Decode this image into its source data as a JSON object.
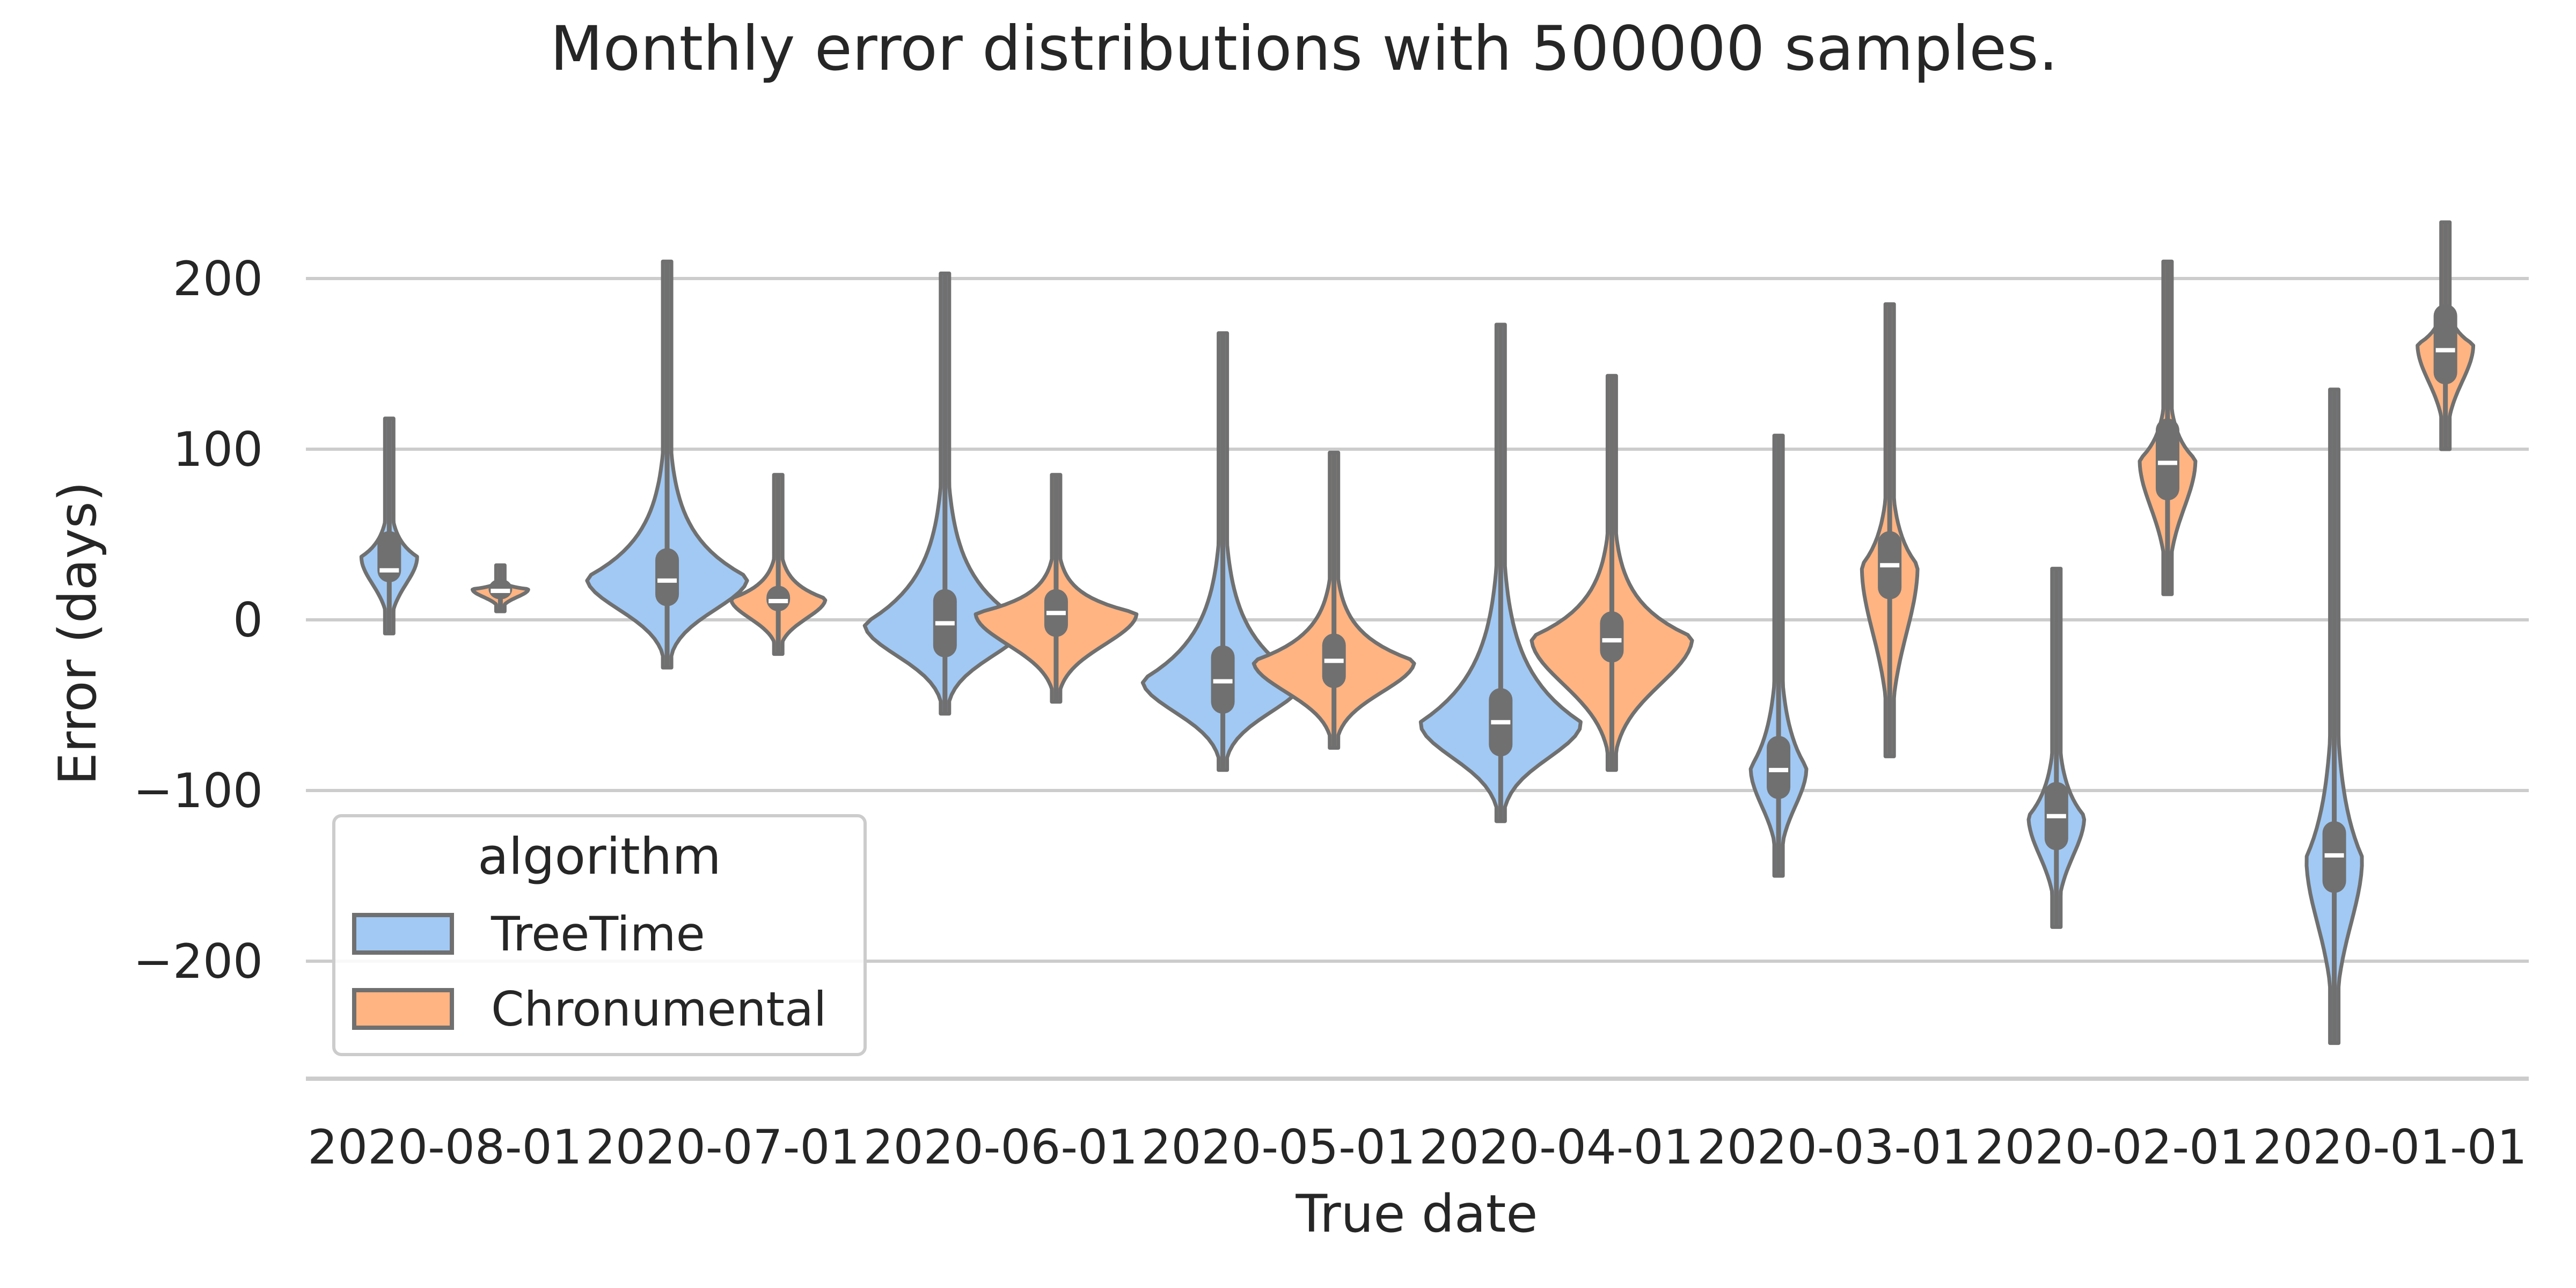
{
  "chart_data": {
    "type": "violin",
    "title": "Monthly error distributions with 500000 samples.",
    "xlabel": "True date",
    "ylabel": "Error (days)",
    "ylim": [
      -270,
      250
    ],
    "yticks": [
      -200,
      -100,
      0,
      100,
      200
    ],
    "ytick_labels": [
      "−200",
      "−100",
      "0",
      "100",
      "200"
    ],
    "grid": "horizontal",
    "legend": {
      "title": "algorithm",
      "position": "lower-left"
    },
    "categories": [
      "2020-08-01",
      "2020-07-01",
      "2020-06-01",
      "2020-05-01",
      "2020-04-01",
      "2020-03-01",
      "2020-02-01",
      "2020-01-01"
    ],
    "series": [
      {
        "name": "TreeTime",
        "color": "#a1c9f4",
        "violins": [
          {
            "min": -8,
            "q1": 22,
            "median": 29,
            "q3": 52,
            "max": 118,
            "shape": "narrow"
          },
          {
            "min": -28,
            "q1": 8,
            "median": 23,
            "q3": 42,
            "max": 210,
            "shape": "wide"
          },
          {
            "min": -55,
            "q1": -22,
            "median": -2,
            "q3": 18,
            "max": 203,
            "shape": "wide"
          },
          {
            "min": -88,
            "q1": -55,
            "median": -36,
            "q3": -15,
            "max": 168,
            "shape": "wide"
          },
          {
            "min": -118,
            "q1": -80,
            "median": -60,
            "q3": -40,
            "max": 173,
            "shape": "wide"
          },
          {
            "min": -150,
            "q1": -105,
            "median": -88,
            "q3": -68,
            "max": 108,
            "shape": "narrow"
          },
          {
            "min": -180,
            "q1": -135,
            "median": -115,
            "q3": -95,
            "max": 30,
            "shape": "narrow"
          },
          {
            "min": -248,
            "q1": -160,
            "median": -138,
            "q3": -118,
            "max": 135,
            "shape": "narrow"
          }
        ]
      },
      {
        "name": "Chronumental",
        "color": "#ffb482",
        "violins": [
          {
            "min": 5,
            "q1": 12,
            "median": 17,
            "q3": 24,
            "max": 32,
            "shape": "narrow"
          },
          {
            "min": -20,
            "q1": 5,
            "median": 11,
            "q3": 20,
            "max": 85,
            "shape": "medium"
          },
          {
            "min": -48,
            "q1": -10,
            "median": 4,
            "q3": 18,
            "max": 85,
            "shape": "wide"
          },
          {
            "min": -75,
            "q1": -40,
            "median": -24,
            "q3": -8,
            "max": 98,
            "shape": "wide"
          },
          {
            "min": -88,
            "q1": -25,
            "median": -12,
            "q3": 5,
            "max": 143,
            "shape": "wide"
          },
          {
            "min": -80,
            "q1": 12,
            "median": 32,
            "q3": 52,
            "max": 185,
            "shape": "narrow"
          },
          {
            "min": 15,
            "q1": 70,
            "median": 92,
            "q3": 118,
            "max": 210,
            "shape": "narrow"
          },
          {
            "min": 100,
            "q1": 138,
            "median": 158,
            "q3": 185,
            "max": 233,
            "shape": "narrow"
          }
        ]
      }
    ]
  }
}
